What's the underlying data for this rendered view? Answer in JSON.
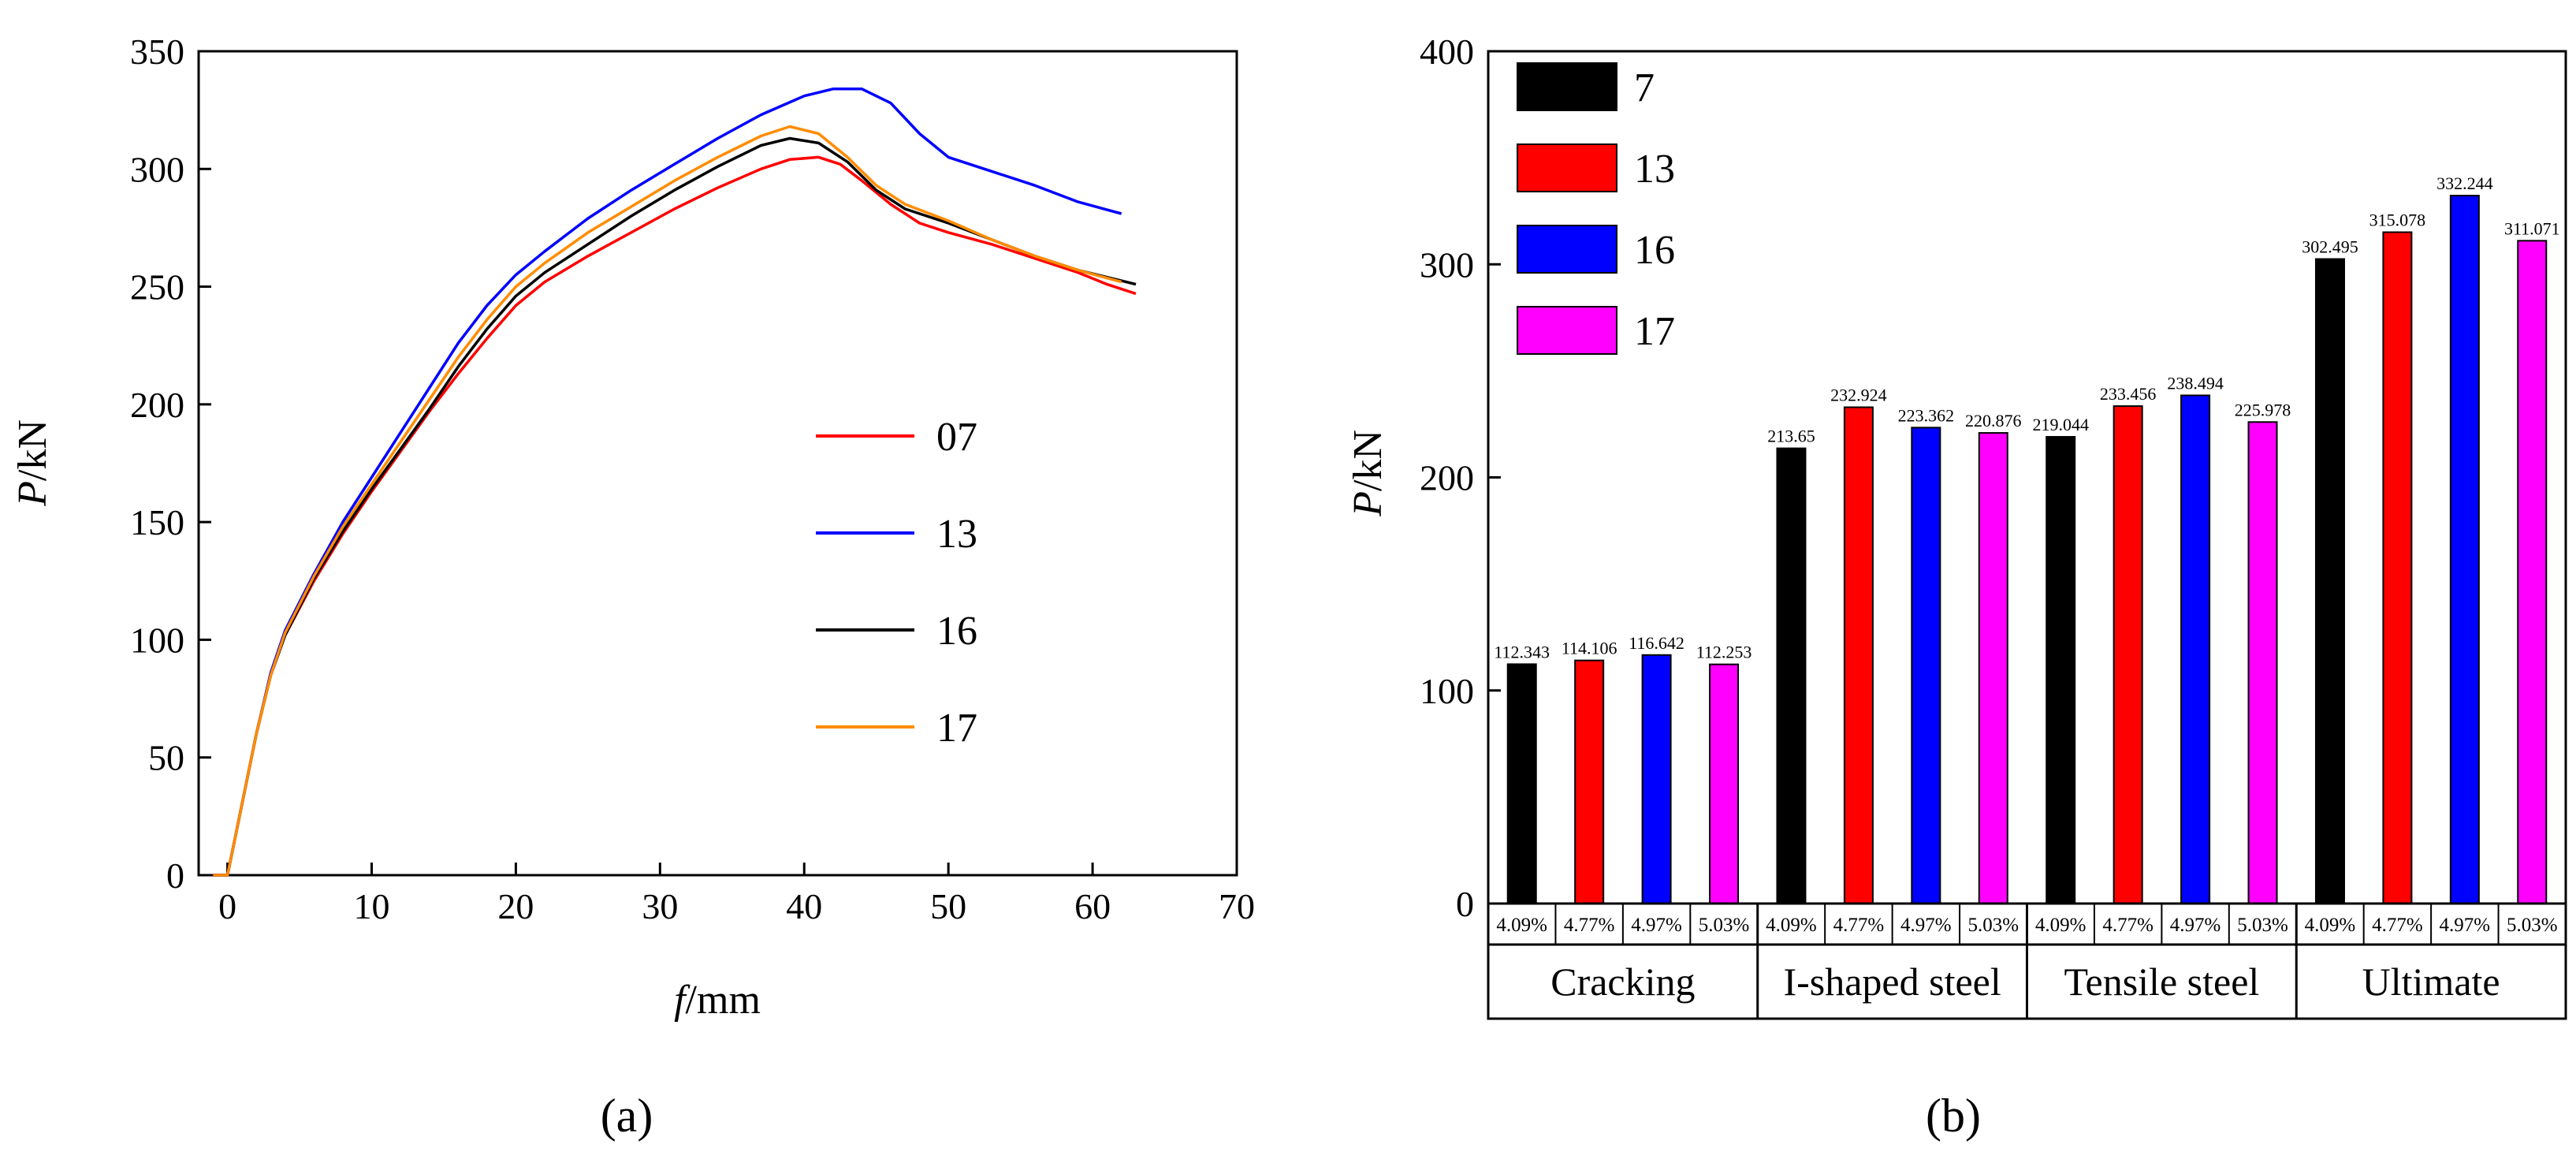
{
  "colors": {
    "red": "#ff0000",
    "blue": "#0000ff",
    "black": "#000000",
    "orange": "#ff8c00",
    "magenta": "#ff00ff"
  },
  "chart_data": [
    {
      "type": "line",
      "panel_label": "(a)",
      "xlabel_italic": "f",
      "xlabel_unit": "/mm",
      "ylabel_italic": "P",
      "ylabel_unit": "/kN",
      "xlim": [
        -2,
        70
      ],
      "ylim": [
        0,
        350
      ],
      "xticks": [
        "0",
        "10",
        "20",
        "30",
        "40",
        "50",
        "60",
        "70"
      ],
      "yticks": [
        "0",
        "50",
        "100",
        "150",
        "200",
        "250",
        "300",
        "350"
      ],
      "grid": false,
      "legend_position": "center-right",
      "series": [
        {
          "name": "07",
          "color": "#ff0000",
          "points": [
            [
              -1,
              0
            ],
            [
              0,
              0
            ],
            [
              1,
              30
            ],
            [
              2,
              60
            ],
            [
              3,
              85
            ],
            [
              4,
              102
            ],
            [
              6,
              125
            ],
            [
              8,
              145
            ],
            [
              10,
              163
            ],
            [
              12,
              180
            ],
            [
              14,
              197
            ],
            [
              16,
              213
            ],
            [
              18,
              228
            ],
            [
              20,
              242
            ],
            [
              22,
              252
            ],
            [
              25,
              263
            ],
            [
              28,
              273
            ],
            [
              31,
              283
            ],
            [
              34,
              292
            ],
            [
              37,
              300
            ],
            [
              39,
              304
            ],
            [
              41,
              305
            ],
            [
              42.5,
              302
            ],
            [
              44,
              295
            ],
            [
              46,
              285
            ],
            [
              48,
              277
            ],
            [
              50,
              273
            ],
            [
              53,
              268
            ],
            [
              56,
              262
            ],
            [
              59,
              256
            ],
            [
              61,
              251
            ],
            [
              63,
              247
            ]
          ]
        },
        {
          "name": "13",
          "color": "#0000ff",
          "points": [
            [
              -1,
              0
            ],
            [
              0,
              0
            ],
            [
              1,
              30
            ],
            [
              2,
              60
            ],
            [
              3,
              86
            ],
            [
              4,
              104
            ],
            [
              6,
              128
            ],
            [
              8,
              150
            ],
            [
              10,
              169
            ],
            [
              12,
              188
            ],
            [
              14,
              207
            ],
            [
              16,
              226
            ],
            [
              18,
              242
            ],
            [
              20,
              255
            ],
            [
              22,
              265
            ],
            [
              25,
              279
            ],
            [
              28,
              291
            ],
            [
              31,
              302
            ],
            [
              34,
              313
            ],
            [
              37,
              323
            ],
            [
              40,
              331
            ],
            [
              42,
              334
            ],
            [
              44,
              334
            ],
            [
              46,
              328
            ],
            [
              48,
              315
            ],
            [
              50,
              305
            ],
            [
              53,
              299
            ],
            [
              56,
              293
            ],
            [
              59,
              286
            ],
            [
              62,
              281
            ]
          ]
        },
        {
          "name": "16",
          "color": "#000000",
          "points": [
            [
              -1,
              0
            ],
            [
              0,
              0
            ],
            [
              1,
              30
            ],
            [
              2,
              60
            ],
            [
              3,
              85
            ],
            [
              4,
              102
            ],
            [
              6,
              126
            ],
            [
              8,
              146
            ],
            [
              10,
              164
            ],
            [
              12,
              181
            ],
            [
              14,
              198
            ],
            [
              16,
              216
            ],
            [
              18,
              232
            ],
            [
              20,
              246
            ],
            [
              22,
              256
            ],
            [
              25,
              268
            ],
            [
              28,
              280
            ],
            [
              31,
              291
            ],
            [
              34,
              301
            ],
            [
              37,
              310
            ],
            [
              39,
              313
            ],
            [
              41,
              311
            ],
            [
              43,
              303
            ],
            [
              45,
              291
            ],
            [
              47,
              283
            ],
            [
              50,
              277
            ],
            [
              53,
              270
            ],
            [
              56,
              263
            ],
            [
              59,
              257
            ],
            [
              63,
              251
            ]
          ]
        },
        {
          "name": "17",
          "color": "#ff8c00",
          "points": [
            [
              -1,
              0
            ],
            [
              0,
              0
            ],
            [
              1,
              30
            ],
            [
              2,
              60
            ],
            [
              3,
              85
            ],
            [
              4,
              103
            ],
            [
              6,
              127
            ],
            [
              8,
              148
            ],
            [
              10,
              166
            ],
            [
              12,
              184
            ],
            [
              14,
              202
            ],
            [
              16,
              220
            ],
            [
              18,
              236
            ],
            [
              20,
              250
            ],
            [
              22,
              260
            ],
            [
              25,
              273
            ],
            [
              28,
              284
            ],
            [
              31,
              295
            ],
            [
              34,
              305
            ],
            [
              37,
              314
            ],
            [
              39,
              318
            ],
            [
              41,
              315
            ],
            [
              43,
              305
            ],
            [
              45,
              293
            ],
            [
              47,
              285
            ],
            [
              50,
              278
            ],
            [
              53,
              270
            ],
            [
              56,
              263
            ],
            [
              59,
              257
            ],
            [
              62,
              252
            ]
          ]
        }
      ]
    },
    {
      "type": "bar",
      "panel_label": "(b)",
      "ylabel_italic": "P",
      "ylabel_unit": "/kN",
      "ylim": [
        0,
        400
      ],
      "yticks": [
        "0",
        "100",
        "200",
        "300",
        "400"
      ],
      "grid": false,
      "legend_position": "top-left",
      "categories": [
        "Cracking",
        "I-shaped steel",
        "Tensile steel",
        "Ultimate"
      ],
      "sublabels": [
        "4.09%",
        "4.77%",
        "4.97%",
        "5.03%"
      ],
      "series": [
        {
          "name": "7",
          "color": "#000000",
          "values": [
            112.343,
            213.65,
            219.044,
            302.495
          ],
          "labels": [
            "112.343",
            "213.65",
            "219.044",
            "302.495"
          ]
        },
        {
          "name": "13",
          "color": "#ff0000",
          "values": [
            114.106,
            232.924,
            233.456,
            315.078
          ],
          "labels": [
            "114.106",
            "232.924",
            "233.456",
            "315.078"
          ]
        },
        {
          "name": "16",
          "color": "#0000ff",
          "values": [
            116.642,
            223.362,
            238.494,
            332.244
          ],
          "labels": [
            "116.642",
            "223.362",
            "238.494",
            "332.244"
          ]
        },
        {
          "name": "17",
          "color": "#ff00ff",
          "values": [
            112.253,
            220.876,
            225.978,
            311.071
          ],
          "labels": [
            "112.253",
            "220.876",
            "225.978",
            "311.071"
          ]
        }
      ]
    }
  ]
}
